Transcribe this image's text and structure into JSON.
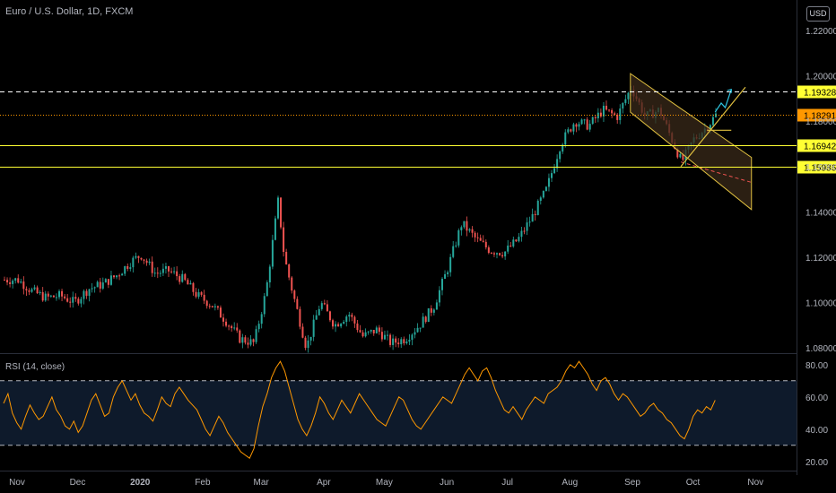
{
  "header": {
    "symbol_title": "Euro / U.S. Dollar, 1D, FXCM",
    "currency_button": "USD"
  },
  "rsi_panel": {
    "title": "RSI (14, close)"
  },
  "colors": {
    "background": "#000000",
    "up_candle": "#26a69a",
    "down_candle": "#ef5350",
    "level_line": "#ffff33",
    "channel": "#e0c040",
    "channel_fill": "#3a2a1a",
    "rsi_line": "#ff9800",
    "rsi_band": "#0e1a2b",
    "axis_text": "#b2b5be",
    "current_price": "#ff9800",
    "projection": "#2ec4e0"
  },
  "chart_data": [
    {
      "type": "candlestick",
      "title": "Euro / U.S. Dollar, 1D, FXCM",
      "y_axis": {
        "ticks": [
          "1.22000",
          "1.20000",
          "1.18000",
          "1.16000",
          "1.14000",
          "1.12000",
          "1.10000",
          "1.08000"
        ],
        "ylim": [
          1.078,
          1.224
        ]
      },
      "x_axis": {
        "ticks": [
          "Nov",
          "Dec",
          "2020",
          "Feb",
          "Mar",
          "Apr",
          "May",
          "Jun",
          "Jul",
          "Aug",
          "Sep",
          "Oct",
          "Nov"
        ]
      },
      "price_path": [
        [
          "2019-11-01",
          1.11
        ],
        [
          "2019-11-08",
          1.105
        ],
        [
          "2019-11-15",
          1.102
        ],
        [
          "2019-11-22",
          1.103
        ],
        [
          "2019-11-29",
          1.1
        ],
        [
          "2019-12-06",
          1.106
        ],
        [
          "2019-12-13",
          1.108
        ],
        [
          "2019-12-20",
          1.112
        ],
        [
          "2019-12-27",
          1.118
        ],
        [
          "2020-01-01",
          1.121
        ],
        [
          "2020-01-08",
          1.113
        ],
        [
          "2020-01-15",
          1.114
        ],
        [
          "2020-01-22",
          1.11
        ],
        [
          "2020-01-29",
          1.103
        ],
        [
          "2020-02-05",
          1.099
        ],
        [
          "2020-02-12",
          1.092
        ],
        [
          "2020-02-19",
          1.084
        ],
        [
          "2020-02-26",
          1.082
        ],
        [
          "2020-03-03",
          1.105
        ],
        [
          "2020-03-09",
          1.145
        ],
        [
          "2020-03-12",
          1.12
        ],
        [
          "2020-03-16",
          1.105
        ],
        [
          "2020-03-23",
          1.08
        ],
        [
          "2020-03-30",
          1.1
        ],
        [
          "2020-04-06",
          1.09
        ],
        [
          "2020-04-13",
          1.095
        ],
        [
          "2020-04-20",
          1.085
        ],
        [
          "2020-04-27",
          1.088
        ],
        [
          "2020-05-04",
          1.082
        ],
        [
          "2020-05-11",
          1.084
        ],
        [
          "2020-05-18",
          1.09
        ],
        [
          "2020-05-25",
          1.098
        ],
        [
          "2020-06-01",
          1.115
        ],
        [
          "2020-06-08",
          1.135
        ],
        [
          "2020-06-15",
          1.128
        ],
        [
          "2020-06-22",
          1.123
        ],
        [
          "2020-06-29",
          1.122
        ],
        [
          "2020-07-06",
          1.128
        ],
        [
          "2020-07-13",
          1.138
        ],
        [
          "2020-07-20",
          1.15
        ],
        [
          "2020-07-27",
          1.17
        ],
        [
          "2020-08-03",
          1.18
        ],
        [
          "2020-08-10",
          1.178
        ],
        [
          "2020-08-17",
          1.185
        ],
        [
          "2020-08-24",
          1.182
        ],
        [
          "2020-08-31",
          1.195
        ],
        [
          "2020-09-07",
          1.182
        ],
        [
          "2020-09-14",
          1.185
        ],
        [
          "2020-09-21",
          1.17
        ],
        [
          "2020-09-25",
          1.162
        ],
        [
          "2020-10-01",
          1.172
        ],
        [
          "2020-10-08",
          1.178
        ],
        [
          "2020-10-12",
          1.1829
        ]
      ],
      "levels": [
        {
          "value": 1.19328,
          "label": "1.19328",
          "style": "dashed",
          "color": "#ffffff"
        },
        {
          "value": 1.18291,
          "label": "1.18291",
          "style": "dotted",
          "color": "#ff9800"
        },
        {
          "value": 1.16942,
          "label": "1.16942",
          "style": "solid",
          "color": "#ffff33"
        },
        {
          "value": 1.15986,
          "label": "1.15986",
          "style": "solid",
          "color": "#ffff33"
        }
      ],
      "grid": false
    },
    {
      "type": "line",
      "title": "RSI (14, close)",
      "y_axis": {
        "ticks": [
          "80.00",
          "60.00",
          "40.00",
          "20.00"
        ],
        "ylim": [
          16,
          86
        ]
      },
      "bands": [
        70,
        30
      ],
      "values": [
        56,
        62,
        50,
        44,
        40,
        48,
        55,
        50,
        46,
        48,
        54,
        60,
        52,
        48,
        42,
        40,
        45,
        38,
        42,
        50,
        58,
        62,
        55,
        48,
        50,
        60,
        66,
        70,
        64,
        58,
        62,
        55,
        50,
        48,
        45,
        52,
        60,
        56,
        54,
        62,
        66,
        62,
        58,
        55,
        52,
        46,
        40,
        36,
        42,
        48,
        44,
        38,
        34,
        30,
        26,
        24,
        22,
        28,
        42,
        54,
        62,
        72,
        78,
        82,
        76,
        66,
        56,
        46,
        40,
        36,
        42,
        50,
        60,
        56,
        50,
        46,
        52,
        58,
        54,
        50,
        56,
        62,
        58,
        54,
        50,
        46,
        44,
        42,
        48,
        54,
        60,
        58,
        52,
        46,
        42,
        40,
        44,
        48,
        52,
        56,
        60,
        58,
        56,
        62,
        68,
        74,
        78,
        74,
        70,
        76,
        78,
        72,
        64,
        58,
        52,
        50,
        54,
        50,
        46,
        52,
        56,
        60,
        58,
        56,
        62,
        64,
        66,
        70,
        76,
        80,
        78,
        82,
        78,
        74,
        68,
        64,
        70,
        72,
        68,
        62,
        58,
        62,
        60,
        56,
        52,
        48,
        50,
        54,
        56,
        52,
        50,
        46,
        44,
        40,
        36,
        34,
        40,
        48,
        52,
        50,
        54,
        52,
        58
      ]
    }
  ]
}
